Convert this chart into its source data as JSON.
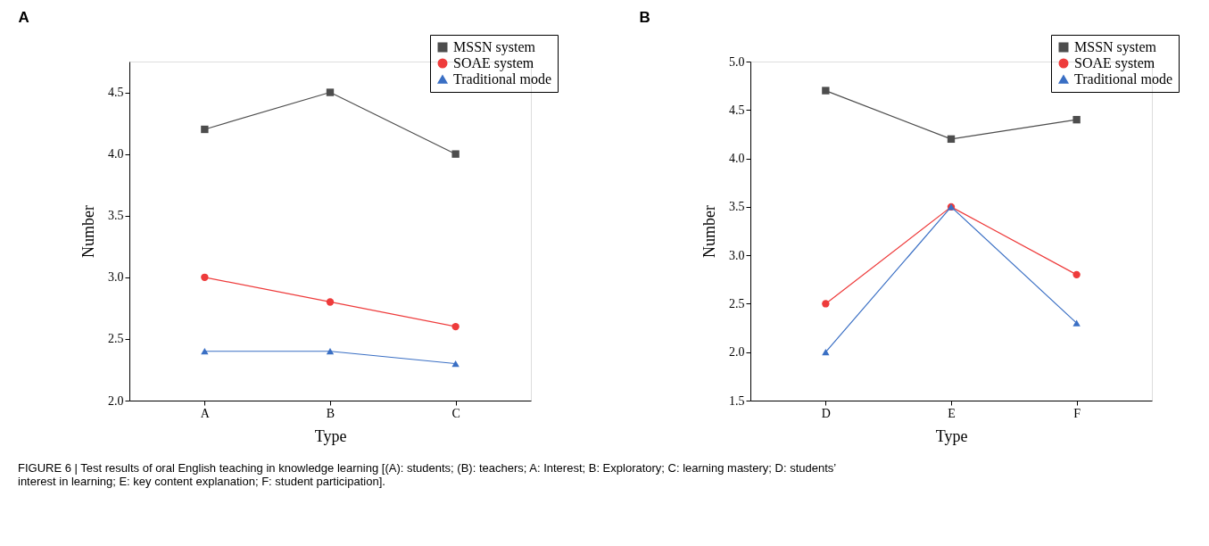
{
  "chart_data": [
    {
      "type": "line",
      "title": "A",
      "xlabel": "Type",
      "ylabel": "Number",
      "categories": [
        "A",
        "B",
        "C"
      ],
      "series": [
        {
          "name": "MSSN system",
          "color": "#4d4d4d",
          "marker": "square",
          "values": [
            4.2,
            4.5,
            4.0
          ]
        },
        {
          "name": "SOAE system",
          "color": "#ee3b3b",
          "marker": "circle",
          "values": [
            3.0,
            2.8,
            2.6
          ]
        },
        {
          "name": "Traditional mode",
          "color": "#3a6fc4",
          "marker": "triangle",
          "values": [
            2.4,
            2.4,
            2.3
          ]
        }
      ],
      "ylim": [
        2.0,
        4.75
      ],
      "yticks": [
        {
          "value": 2,
          "label": "2.0"
        },
        2.5,
        {
          "value": 3,
          "label": "3.0"
        },
        3.5,
        {
          "value": 4,
          "label": "4.0"
        },
        4.5
      ],
      "grid": false,
      "legend": "top right",
      "line_style": "solid",
      "annotations": [
        "FIGURE 6 | Test results of oral English teaching in knowledge learning [(A): students; (B): teachers; A: Interest; B: Exploratory; C: learning mastery; D: students’ interest in learning; E: key content explanation; F: student participation]."
      ]
    },
    {
      "type": "line",
      "title": "B",
      "xlabel": "Type",
      "ylabel": "Number",
      "categories": [
        "D",
        "E",
        "F"
      ],
      "series": [
        {
          "name": "MSSN system",
          "color": "#4d4d4d",
          "marker": "square",
          "values": [
            4.7,
            4.2,
            4.4
          ]
        },
        {
          "name": "SOAE system",
          "color": "#ee3b3b",
          "marker": "circle",
          "values": [
            2.5,
            3.5,
            2.8
          ]
        },
        {
          "name": "Traditional mode",
          "color": "#3a6fc4",
          "marker": "triangle",
          "values": [
            2.0,
            3.5,
            2.3
          ]
        }
      ],
      "ylim": [
        1.5,
        5.0
      ],
      "yticks": [
        1.5,
        {
          "value": 2,
          "label": "2.0"
        },
        2.5,
        {
          "value": 3,
          "label": "3.0"
        },
        3.5,
        {
          "value": 4,
          "label": "4.0"
        },
        4.5,
        {
          "value": 5,
          "label": "5.0"
        }
      ],
      "grid": false,
      "legend": "top right",
      "line_style": "solid"
    }
  ]
}
